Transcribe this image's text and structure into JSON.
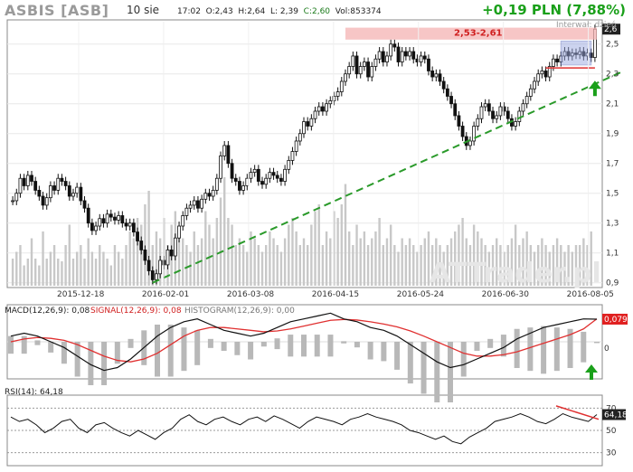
{
  "header": {
    "ticker": "ASBIS [ASB]",
    "date": "10 sie",
    "time": "17:02",
    "open": "O:2,43",
    "high": "H:2,64",
    "low": "L: 2,39",
    "close": "C:2,60",
    "volume": "Vol:853374",
    "change": "+0,19 PLN (7,88%)",
    "interval_note": "Interwał: dzień",
    "watermark": "ATTrader.pl"
  },
  "colors": {
    "up": "#1a1a1a",
    "down": "#1a1a1a",
    "volume": "#c8c8c8",
    "trend": "#2a9a2a",
    "resistance_band": "#f4b3b3",
    "resistance_line": "#e03030",
    "macd": "#111111",
    "signal": "#e03030",
    "histogram": "#b8b8b8",
    "accent_green": "#1aa01a"
  },
  "chart_data": [
    {
      "type": "candlestick",
      "title": "ASBIS [ASB]",
      "x_ticks": [
        "2015-12-18",
        "2016-02-01",
        "2016-03-08",
        "2016-04-15",
        "2016-05-24",
        "2016-06-30",
        "2016-08-05"
      ],
      "y_ticks": [
        "0,9",
        "1,1",
        "1,3",
        "1,5",
        "1,7",
        "1,9",
        "2,1",
        "2,3",
        "2,5"
      ],
      "ylim": [
        0.88,
        2.65
      ],
      "last_price_label": "2,6",
      "last_price": 2.6,
      "annotation_band": {
        "label": "2,53-2,61",
        "low": 2.53,
        "high": 2.61
      },
      "close_series": [
        1.45,
        1.5,
        1.6,
        1.55,
        1.62,
        1.58,
        1.52,
        1.48,
        1.42,
        1.47,
        1.55,
        1.52,
        1.6,
        1.58,
        1.55,
        1.48,
        1.5,
        1.54,
        1.45,
        1.4,
        1.3,
        1.25,
        1.28,
        1.33,
        1.3,
        1.36,
        1.34,
        1.32,
        1.35,
        1.3,
        1.28,
        1.3,
        1.24,
        1.18,
        1.12,
        1.05,
        0.98,
        0.92,
        0.96,
        1.05,
        1.02,
        1.12,
        1.08,
        1.2,
        1.28,
        1.35,
        1.4,
        1.42,
        1.45,
        1.4,
        1.46,
        1.5,
        1.48,
        1.52,
        1.6,
        1.75,
        1.82,
        1.7,
        1.6,
        1.58,
        1.52,
        1.55,
        1.6,
        1.64,
        1.66,
        1.58,
        1.56,
        1.6,
        1.64,
        1.62,
        1.6,
        1.58,
        1.66,
        1.72,
        1.78,
        1.85,
        1.9,
        1.98,
        1.95,
        2.0,
        2.05,
        2.08,
        2.05,
        2.1,
        2.12,
        2.15,
        2.18,
        2.25,
        2.3,
        2.35,
        2.42,
        2.3,
        2.35,
        2.38,
        2.28,
        2.35,
        2.4,
        2.45,
        2.38,
        2.42,
        2.5,
        2.48,
        2.38,
        2.45,
        2.42,
        2.45,
        2.4,
        2.38,
        2.42,
        2.4,
        2.32,
        2.28,
        2.3,
        2.25,
        2.2,
        2.15,
        2.1,
        2.02,
        1.95,
        1.88,
        1.82,
        1.85,
        1.95,
        2.0,
        2.08,
        2.1,
        2.05,
        2.0,
        2.02,
        2.08,
        2.05,
        2.0,
        1.95,
        1.98,
        2.05,
        2.1,
        2.15,
        2.2,
        2.25,
        2.3,
        2.32,
        2.28,
        2.35,
        2.4,
        2.38,
        2.42,
        2.45,
        2.42,
        2.44,
        2.43,
        2.45,
        2.42,
        2.44,
        2.41,
        2.6
      ],
      "volume_relative": [
        0.2,
        0.25,
        0.3,
        0.15,
        0.2,
        0.35,
        0.2,
        0.15,
        0.4,
        0.2,
        0.25,
        0.3,
        0.2,
        0.18,
        0.3,
        0.45,
        0.2,
        0.25,
        0.3,
        0.2,
        0.35,
        0.25,
        0.2,
        0.3,
        0.25,
        0.2,
        0.15,
        0.3,
        0.25,
        0.2,
        0.3,
        0.4,
        0.35,
        0.5,
        0.45,
        0.6,
        0.7,
        0.3,
        0.4,
        0.35,
        0.5,
        0.3,
        0.45,
        0.55,
        0.4,
        0.35,
        0.3,
        0.25,
        0.4,
        0.3,
        0.35,
        0.55,
        0.45,
        0.35,
        0.5,
        0.65,
        0.8,
        0.5,
        0.45,
        0.3,
        0.35,
        0.3,
        0.25,
        0.4,
        0.35,
        0.3,
        0.25,
        0.3,
        0.4,
        0.35,
        0.3,
        0.25,
        0.35,
        0.45,
        0.5,
        0.4,
        0.3,
        0.35,
        0.3,
        0.45,
        0.55,
        0.6,
        0.3,
        0.4,
        0.35,
        0.55,
        0.5,
        0.6,
        0.75,
        0.4,
        0.3,
        0.45,
        0.35,
        0.4,
        0.3,
        0.35,
        0.4,
        0.5,
        0.3,
        0.35,
        0.45,
        0.3,
        0.25,
        0.35,
        0.3,
        0.35,
        0.3,
        0.25,
        0.3,
        0.35,
        0.4,
        0.3,
        0.35,
        0.3,
        0.25,
        0.3,
        0.35,
        0.4,
        0.45,
        0.5,
        0.35,
        0.3,
        0.45,
        0.4,
        0.35,
        0.3,
        0.25,
        0.3,
        0.35,
        0.3,
        0.25,
        0.3,
        0.35,
        0.45,
        0.3,
        0.35,
        0.4,
        0.3,
        0.25,
        0.3,
        0.35,
        0.3,
        0.25,
        0.3,
        0.35,
        0.3,
        0.25,
        0.3,
        0.25,
        0.3,
        0.3,
        0.35,
        0.3,
        0.4
      ]
    },
    {
      "type": "line",
      "title": "MACD(12,26,9): 0,08",
      "series_labels": {
        "macd": "MACD(12,26,9): 0,08",
        "signal": "SIGNAL(12,26,9): 0,08",
        "histogram": "HISTOGRAM(12,26,9): 0,00"
      },
      "value_label": "0,079",
      "zero_label": "0",
      "macd": [
        0.02,
        0.03,
        0.02,
        0.0,
        -0.02,
        -0.05,
        -0.08,
        -0.1,
        -0.09,
        -0.06,
        -0.02,
        0.02,
        0.05,
        0.07,
        0.08,
        0.06,
        0.04,
        0.03,
        0.02,
        0.03,
        0.05,
        0.07,
        0.08,
        0.09,
        0.1,
        0.08,
        0.07,
        0.05,
        0.04,
        0.02,
        -0.01,
        -0.04,
        -0.07,
        -0.09,
        -0.08,
        -0.06,
        -0.04,
        -0.02,
        0.01,
        0.03,
        0.05,
        0.06,
        0.07,
        0.08,
        0.079
      ],
      "signal": [
        0.0,
        0.01,
        0.015,
        0.012,
        0.005,
        -0.01,
        -0.03,
        -0.05,
        -0.065,
        -0.07,
        -0.06,
        -0.04,
        -0.01,
        0.02,
        0.04,
        0.05,
        0.05,
        0.045,
        0.04,
        0.035,
        0.038,
        0.045,
        0.055,
        0.065,
        0.075,
        0.078,
        0.076,
        0.07,
        0.062,
        0.052,
        0.038,
        0.02,
        0.0,
        -0.02,
        -0.04,
        -0.05,
        -0.05,
        -0.045,
        -0.035,
        -0.02,
        -0.005,
        0.01,
        0.025,
        0.045,
        0.08
      ]
    },
    {
      "type": "line",
      "title": "RSI(14): 64,18",
      "y_ticks": [
        "70",
        "50",
        "30"
      ],
      "ylim": [
        20,
        80
      ],
      "value_label": "64,18",
      "values": [
        62,
        58,
        60,
        55,
        48,
        52,
        58,
        60,
        52,
        48,
        55,
        57,
        52,
        48,
        45,
        50,
        46,
        42,
        48,
        52,
        60,
        64,
        58,
        55,
        60,
        62,
        58,
        55,
        60,
        62,
        58,
        63,
        60,
        56,
        52,
        58,
        62,
        60,
        58,
        55,
        60,
        62,
        65,
        62,
        60,
        58,
        55,
        50,
        48,
        45,
        42,
        45,
        40,
        38,
        44,
        48,
        52,
        58,
        60,
        62,
        65,
        62,
        58,
        56,
        60,
        65,
        62,
        60,
        58,
        64.18
      ]
    }
  ]
}
